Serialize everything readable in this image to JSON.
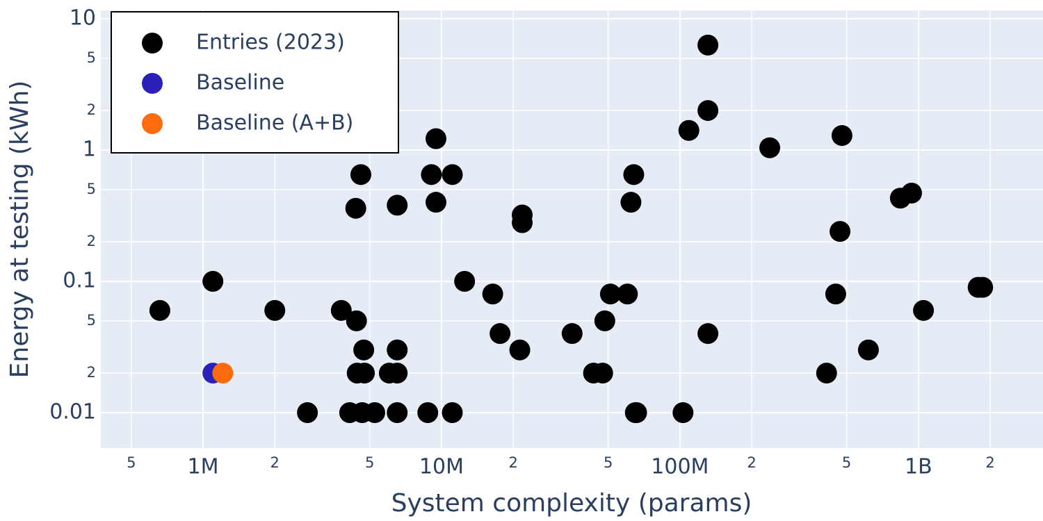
{
  "chart_data": {
    "type": "scatter",
    "x_label": "System complexity (params)",
    "y_label": "Energy at testing (kWh)",
    "x_log": true,
    "y_log": true,
    "grid": true,
    "legend": "top-left",
    "xlim": [
      372700,
      3330000000
    ],
    "ylim": [
      0.00537,
      11.57
    ],
    "xticks": [
      {
        "value": 500000,
        "label": "5"
      },
      {
        "value": 1000000,
        "label": "1M"
      },
      {
        "value": 2000000,
        "label": "2"
      },
      {
        "value": 5000000,
        "label": "5"
      },
      {
        "value": 10000000,
        "label": "10M"
      },
      {
        "value": 20000000,
        "label": "2"
      },
      {
        "value": 50000000,
        "label": "5"
      },
      {
        "value": 100000000,
        "label": "100M"
      },
      {
        "value": 200000000,
        "label": "2"
      },
      {
        "value": 500000000,
        "label": "5"
      },
      {
        "value": 1000000000,
        "label": "1B"
      },
      {
        "value": 2000000000,
        "label": "2"
      }
    ],
    "yticks": [
      0.01,
      {
        "value": 0.02,
        "label": "2"
      },
      {
        "value": 0.05,
        "label": "5"
      },
      0.1,
      {
        "value": 0.2,
        "label": "2"
      },
      {
        "value": 0.5,
        "label": "5"
      },
      1,
      2,
      5,
      10
    ],
    "series": [
      {
        "name": "Entries (2023)",
        "color": "#000000",
        "x": [
          659000,
          1100000,
          2000000,
          2740000,
          3800000,
          4400000,
          4370000,
          4590000,
          4120000,
          4650000,
          5250000,
          4430000,
          4750000,
          4720000,
          6040000,
          6520000,
          6520000,
          6520000,
          6520000,
          8760000,
          9070000,
          9480000,
          9480000,
          11100000,
          11100000,
          12500000,
          16400000,
          17600000,
          21300000,
          21800000,
          21800000,
          35300000,
          43400000,
          47400000,
          48400000,
          51100000,
          60200000,
          62300000,
          64000000,
          65000000,
          65800000,
          103000000,
          109000000,
          131000000,
          131000000,
          131000000,
          238000000,
          412000000,
          450000000,
          469000000,
          478000000,
          617000000,
          840000000,
          936000000,
          1050000000,
          1780000000,
          1860000000
        ],
        "values": [
          0.06,
          0.1,
          0.06,
          0.01,
          0.06,
          0.05,
          0.36,
          0.65,
          0.01,
          0.01,
          0.01,
          0.02,
          0.02,
          0.03,
          0.02,
          0.02,
          0.03,
          0.01,
          0.38,
          0.01,
          0.65,
          0.4,
          1.22,
          0.65,
          0.01,
          0.1,
          0.08,
          0.04,
          0.03,
          0.32,
          0.28,
          0.04,
          0.02,
          0.02,
          0.05,
          0.08,
          0.08,
          0.4,
          0.65,
          0.01,
          0.01,
          0.01,
          1.41,
          2,
          6.3,
          0.04,
          1.04,
          0.02,
          0.08,
          0.24,
          1.29,
          0.03,
          0.43,
          0.47,
          0.06,
          0.09,
          0.09
        ]
      },
      {
        "name": "Baseline",
        "color": "#2a1fb8",
        "x": [
          1100000
        ],
        "values": [
          0.02
        ]
      },
      {
        "name": "Baseline (A+B)",
        "color": "#ff6a0d",
        "x": [
          1210000
        ],
        "values": [
          0.02
        ]
      }
    ]
  }
}
